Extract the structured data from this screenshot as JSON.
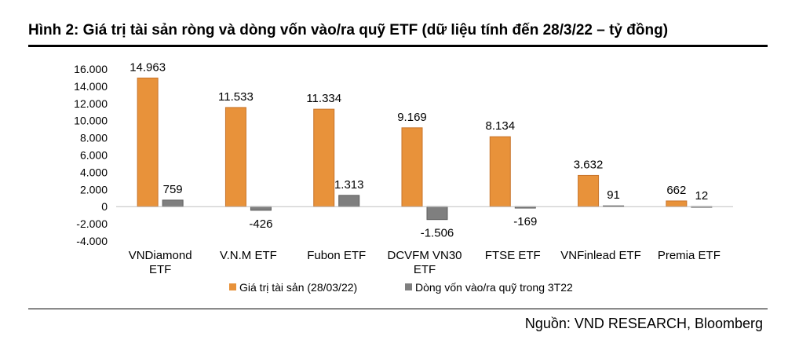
{
  "figure": {
    "title": "Hình 2: Giá trị tài sản ròng và dòng vốn vào/ra quỹ ETF (dữ liệu tính đến 28/3/22 – tỷ đồng)",
    "source": "Nguồn: VND RESEARCH, Bloomberg"
  },
  "chart_data": {
    "type": "bar",
    "categories": [
      [
        "VNDiamond",
        "ETF"
      ],
      [
        "V.N.M ETF"
      ],
      [
        "Fubon ETF"
      ],
      [
        "DCVFM VN30",
        "ETF"
      ],
      [
        "FTSE ETF"
      ],
      [
        "VNFinlead ETF"
      ],
      [
        "Premia ETF"
      ]
    ],
    "series": [
      {
        "name": "Giá trị tài sản (28/03/22)",
        "color": "#E8923A",
        "values": [
          14963,
          11533,
          11334,
          9169,
          8134,
          3632,
          662
        ],
        "labels": [
          "14.963",
          "11.533",
          "11.334",
          "9.169",
          "8.134",
          "3.632",
          "662"
        ]
      },
      {
        "name": "Dòng vốn vào/ra quỹ trong 3T22",
        "color": "#7F7F7F",
        "values": [
          759,
          -426,
          1313,
          -1506,
          -169,
          91,
          12
        ],
        "labels": [
          "759",
          "-426",
          "1.313",
          "-1.506",
          "-169",
          "91",
          "12"
        ]
      }
    ],
    "ylim": [
      -4000,
      16000
    ],
    "yticks": [
      16000,
      14000,
      12000,
      10000,
      8000,
      6000,
      4000,
      2000,
      0,
      -2000,
      -4000
    ],
    "ytick_labels": [
      "16.000",
      "14.000",
      "12.000",
      "10.000",
      "8.000",
      "6.000",
      "4.000",
      "2.000",
      "0",
      "-2.000",
      "-4.000"
    ],
    "grid": false,
    "legend_position": "bottom"
  }
}
